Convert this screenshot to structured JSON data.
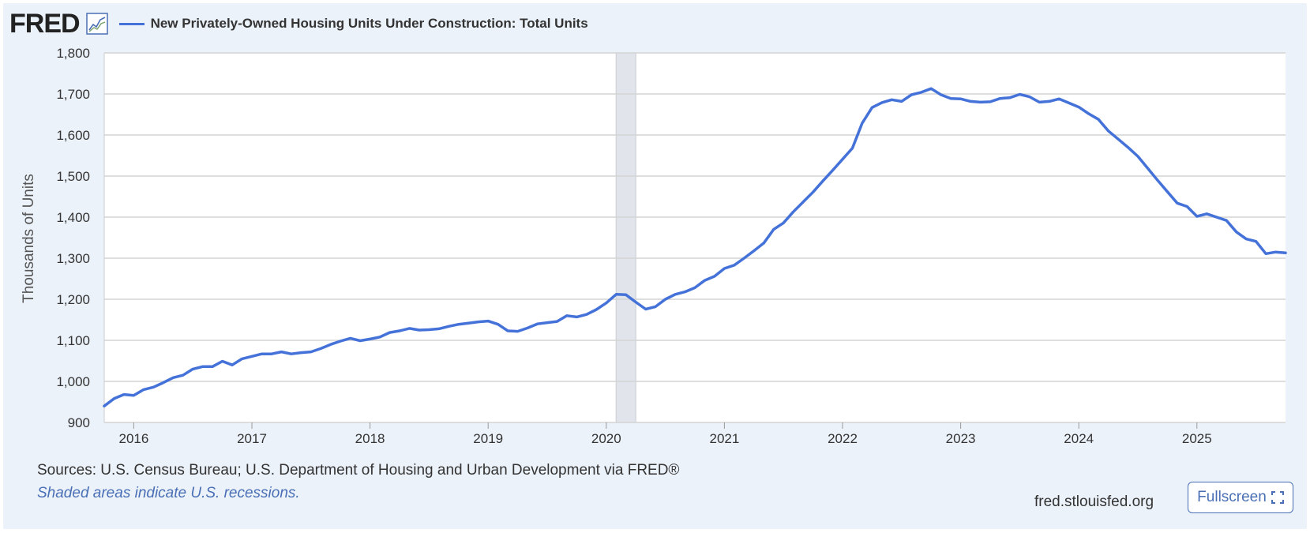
{
  "header": {
    "logo": "FRED",
    "logo_icon": "line-chart-icon",
    "series_title": "New Privately-Owned Housing Units Under Construction: Total Units"
  },
  "footer": {
    "sources": "Sources: U.S. Census Bureau; U.S. Department of Housing and Urban Development via FRED®",
    "recession_note": "Shaded areas indicate U.S. recessions.",
    "site": "fred.stlouisfed.org",
    "fullscreen_label": "Fullscreen",
    "fullscreen_icon": "fullscreen-icon"
  },
  "colors": {
    "line": "#4472d8",
    "recession": "#e1e4ea",
    "grid": "#d3d3d3"
  },
  "chart_data": {
    "type": "line",
    "title": "New Privately-Owned Housing Units Under Construction: Total Units",
    "ylabel": "Thousands of Units",
    "xlabel": "",
    "ylim": [
      900,
      1800
    ],
    "yticks": [
      900,
      1000,
      1100,
      1200,
      1300,
      1400,
      1500,
      1600,
      1700,
      1800
    ],
    "ytick_labels": [
      "900",
      "1,000",
      "1,100",
      "1,200",
      "1,300",
      "1,400",
      "1,500",
      "1,600",
      "1,700",
      "1,800"
    ],
    "xlim": [
      2015.75,
      2025.75
    ],
    "xticks": [
      2016,
      2017,
      2018,
      2019,
      2020,
      2021,
      2022,
      2023,
      2024,
      2025
    ],
    "xtick_labels": [
      "2016",
      "2017",
      "2018",
      "2019",
      "2020",
      "2021",
      "2022",
      "2023",
      "2024",
      "2025"
    ],
    "recessions": [
      [
        2020.083,
        2020.25
      ]
    ],
    "grid": true,
    "series": [
      {
        "name": "New Privately-Owned Housing Units Under Construction: Total Units",
        "start": 2015.75,
        "step": 0.083333,
        "values": [
          940,
          958,
          968,
          966,
          980,
          986,
          997,
          1009,
          1015,
          1030,
          1036,
          1036,
          1049,
          1040,
          1055,
          1061,
          1067,
          1067,
          1072,
          1067,
          1070,
          1072,
          1080,
          1090,
          1098,
          1105,
          1099,
          1103,
          1108,
          1119,
          1123,
          1129,
          1125,
          1126,
          1128,
          1134,
          1139,
          1142,
          1145,
          1147,
          1139,
          1123,
          1122,
          1130,
          1140,
          1143,
          1146,
          1160,
          1157,
          1163,
          1175,
          1191,
          1212,
          1211,
          1193,
          1176,
          1182,
          1200,
          1212,
          1218,
          1228,
          1246,
          1256,
          1275,
          1283,
          1300,
          1318,
          1337,
          1370,
          1386,
          1413,
          1437,
          1461,
          1488,
          1514,
          1541,
          1568,
          1629,
          1667,
          1679,
          1686,
          1682,
          1698,
          1704,
          1713,
          1698,
          1689,
          1688,
          1682,
          1680,
          1681,
          1689,
          1691,
          1699,
          1693,
          1680,
          1682,
          1688,
          1678,
          1668,
          1652,
          1638,
          1610,
          1590,
          1570,
          1548,
          1519,
          1490,
          1462,
          1434,
          1426,
          1402,
          1408,
          1400,
          1392,
          1364,
          1347,
          1341,
          1311,
          1315,
          1313
        ]
      }
    ]
  }
}
